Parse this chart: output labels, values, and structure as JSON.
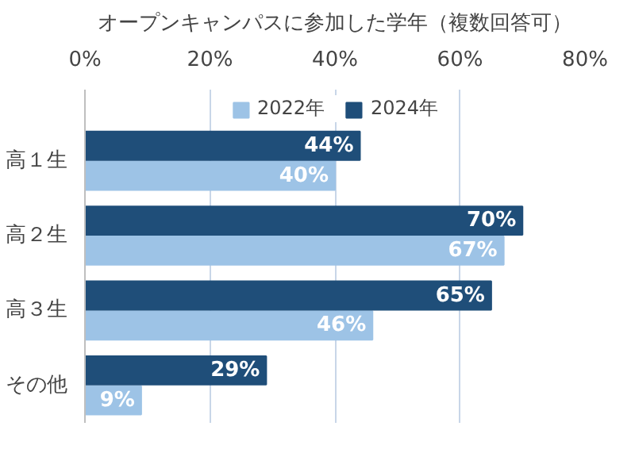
{
  "chart_data": {
    "type": "bar",
    "orientation": "horizontal",
    "title": "オープンキャンパスに参加した学年（複数回答可）",
    "categories": [
      "高１生",
      "高２生",
      "高３生",
      "その他"
    ],
    "series": [
      {
        "name": "2022年",
        "color": "#9dc3e6",
        "values": [
          40,
          67,
          46,
          9
        ],
        "value_labels": [
          "40%",
          "67%",
          "46%",
          "9%"
        ]
      },
      {
        "name": "2024年",
        "color": "#1f4e79",
        "values": [
          44,
          70,
          65,
          29
        ],
        "value_labels": [
          "44%",
          "70%",
          "65%",
          "29%"
        ]
      }
    ],
    "xlim": [
      0,
      80
    ],
    "xticks": [
      {
        "value": 0,
        "label": "0%"
      },
      {
        "value": 20,
        "label": "20%"
      },
      {
        "value": 40,
        "label": "40%"
      },
      {
        "value": 60,
        "label": "60%"
      },
      {
        "value": 80,
        "label": "80%"
      }
    ],
    "grid": "x",
    "legend": "top"
  }
}
